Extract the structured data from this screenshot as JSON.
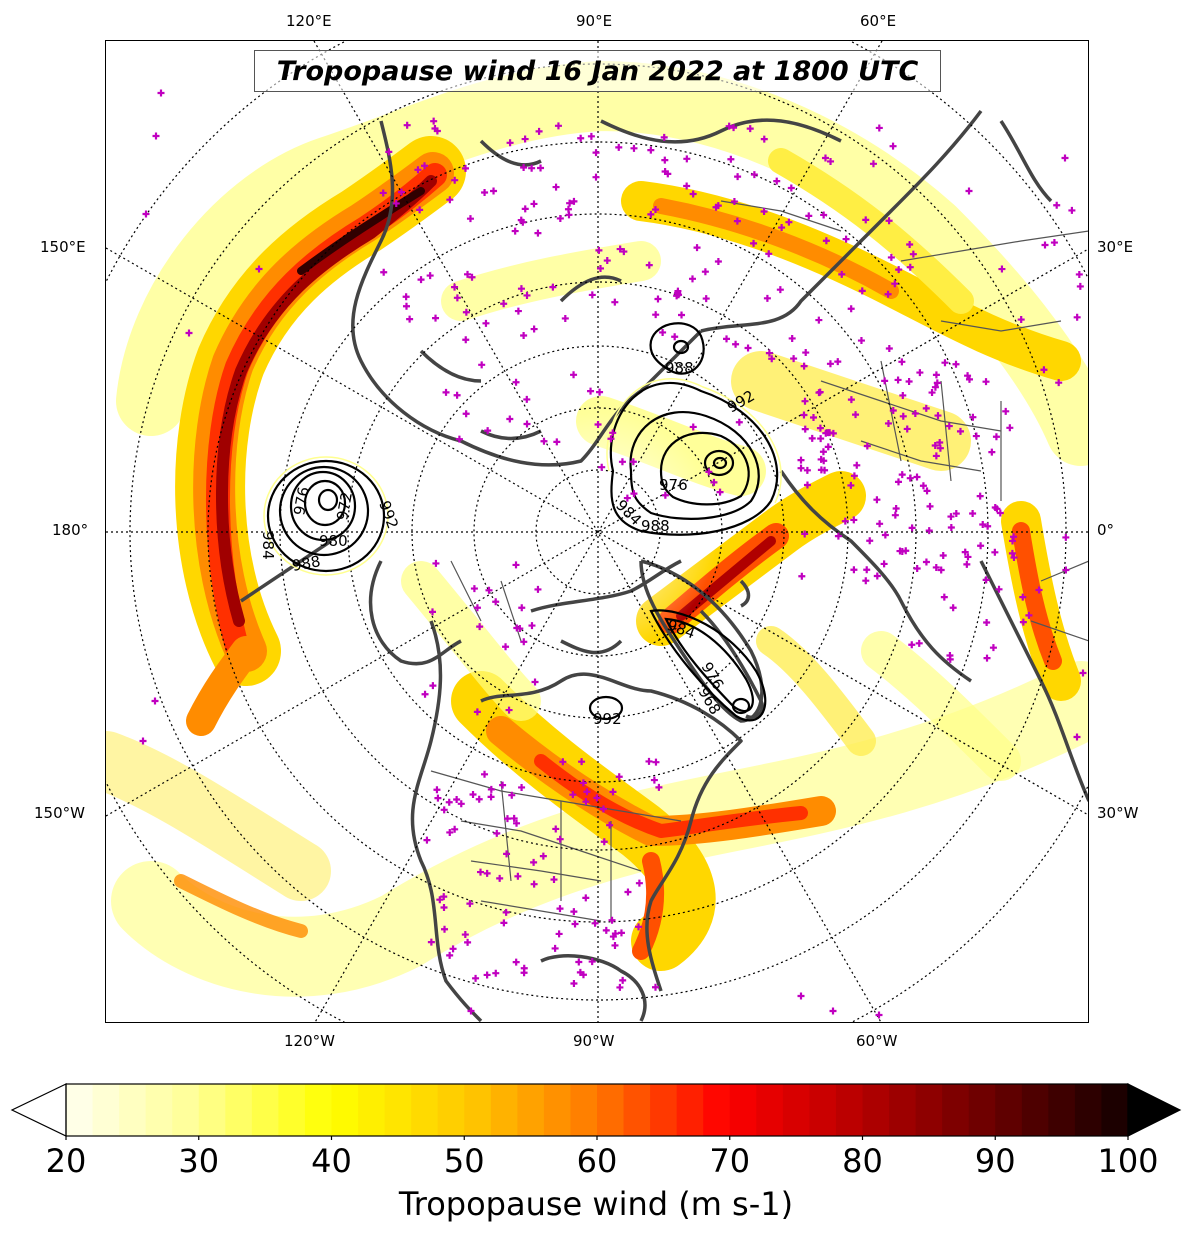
{
  "map": {
    "title": "Tropopause wind 16 Jan 2022 at 1800 UTC",
    "projection": "north-polar-stereographic",
    "central_meridian": "90°W",
    "graticule_style": "dotted",
    "top_labels": [
      "120°E",
      "90°E",
      "60°E"
    ],
    "left_labels": [
      "150°E",
      "180°",
      "150°W"
    ],
    "right_labels": [
      "30°E",
      "0°",
      "30°W"
    ],
    "bottom_labels": [
      "120°W",
      "90°W",
      "60°W"
    ],
    "pressure_contour_labels": [
      "988",
      "984",
      "980",
      "976",
      "972",
      "992",
      "988",
      "984",
      "976",
      "988",
      "992",
      "984",
      "976",
      "968",
      "992"
    ],
    "station_marker": "+",
    "station_color": "#c000c0",
    "coastline_color": "#444444",
    "colors": [
      "#ffffff",
      "#ffff66",
      "#ffd700",
      "#ff8c00",
      "#ff2000",
      "#a00000",
      "#300000"
    ]
  },
  "colorbar": {
    "label": "Tropopause wind (m s-1)",
    "ticks": [
      "20",
      "30",
      "40",
      "50",
      "60",
      "70",
      "80",
      "90",
      "100"
    ],
    "min": 20,
    "max": 100,
    "extend": "both"
  }
}
